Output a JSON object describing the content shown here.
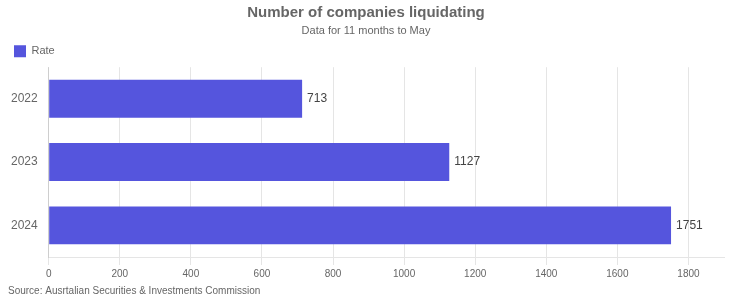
{
  "chart_data": {
    "type": "bar",
    "orientation": "horizontal",
    "title": "Number of companies liquidating",
    "subtitle": "Data for 11 months to May",
    "annotations": [
      "Source: Ausrtalian Securities & Investments Commission"
    ],
    "categories": [
      "2024",
      "2023",
      "2022"
    ],
    "series": [
      {
        "name": "Rate",
        "color": "#5555dd",
        "values": [
          1751,
          1127,
          713
        ]
      }
    ],
    "xlim": [
      0,
      1900
    ],
    "xticks": [
      0,
      200,
      400,
      600,
      800,
      1000,
      1200,
      1400,
      1600,
      1800
    ],
    "grid": true,
    "legend": "upper left",
    "data_labels": true
  }
}
